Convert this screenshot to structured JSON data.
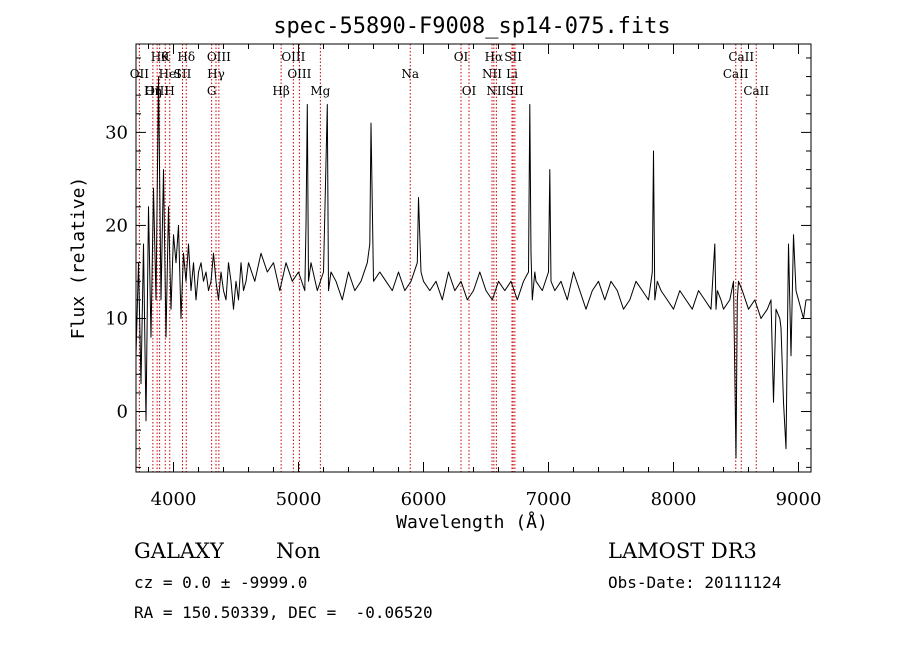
{
  "chart_data": {
    "type": "line",
    "title": "spec-55890-F9008_sp14-075.fits",
    "xlabel": "Wavelength (Å)",
    "ylabel": "Flux (relative)",
    "xlim": [
      3700,
      9100
    ],
    "ylim": [
      -6.5,
      39.5
    ],
    "xticks": [
      4000,
      5000,
      6000,
      7000,
      8000,
      9000
    ],
    "yticks": [
      0,
      10,
      20,
      30
    ],
    "grid": false,
    "series": [
      {
        "name": "flux",
        "x": [
          3700,
          3720,
          3740,
          3760,
          3780,
          3800,
          3820,
          3840,
          3860,
          3880,
          3900,
          3920,
          3940,
          3960,
          3980,
          4000,
          4020,
          4040,
          4060,
          4080,
          4100,
          4120,
          4140,
          4160,
          4180,
          4200,
          4220,
          4240,
          4260,
          4280,
          4300,
          4320,
          4340,
          4360,
          4380,
          4400,
          4420,
          4440,
          4460,
          4480,
          4500,
          4520,
          4540,
          4560,
          4580,
          4600,
          4650,
          4700,
          4750,
          4800,
          4850,
          4900,
          4950,
          5000,
          5050,
          5060,
          5070,
          5080,
          5100,
          5150,
          5200,
          5230,
          5240,
          5260,
          5300,
          5350,
          5400,
          5450,
          5500,
          5550,
          5570,
          5580,
          5600,
          5650,
          5700,
          5750,
          5800,
          5850,
          5900,
          5950,
          5960,
          5980,
          6000,
          6050,
          6100,
          6150,
          6200,
          6250,
          6300,
          6350,
          6400,
          6450,
          6500,
          6550,
          6600,
          6650,
          6700,
          6750,
          6800,
          6840,
          6850,
          6860,
          6870,
          6890,
          6900,
          6950,
          7000,
          7010,
          7020,
          7050,
          7100,
          7150,
          7200,
          7250,
          7300,
          7350,
          7400,
          7450,
          7500,
          7550,
          7600,
          7650,
          7700,
          7750,
          7800,
          7830,
          7840,
          7850,
          7870,
          7900,
          7950,
          8000,
          8050,
          8100,
          8150,
          8200,
          8250,
          8300,
          8330,
          8340,
          8350,
          8380,
          8400,
          8450,
          8480,
          8500,
          8510,
          8520,
          8550,
          8600,
          8650,
          8700,
          8750,
          8780,
          8800,
          8820,
          8850,
          8860,
          8880,
          8900,
          8920,
          8940,
          8960,
          8980,
          9000,
          9020,
          9040,
          9060
        ],
        "values": [
          6,
          16,
          3,
          18,
          -1,
          22,
          8,
          24,
          12,
          36,
          12,
          26,
          8,
          22,
          11,
          19,
          16,
          20,
          10,
          17,
          14,
          18,
          13,
          16,
          12,
          15,
          16,
          14,
          15,
          13,
          14,
          17,
          14,
          12,
          15,
          13,
          12,
          16,
          14,
          11,
          14,
          12,
          16,
          13,
          14,
          16,
          14,
          17,
          15,
          16,
          13,
          16,
          14,
          15,
          13,
          20,
          33,
          14,
          16,
          13,
          15,
          33,
          13,
          15,
          14,
          12,
          15,
          13,
          14,
          16,
          18,
          31,
          14,
          15,
          14,
          13,
          15,
          13,
          14,
          16,
          23,
          15,
          14,
          13,
          14,
          12,
          15,
          13,
          14,
          12,
          13,
          15,
          13,
          12,
          14,
          13,
          14,
          12,
          14,
          15,
          33,
          17,
          12,
          15,
          14,
          13,
          15,
          26,
          14,
          13,
          14,
          12,
          15,
          13,
          11,
          13,
          14,
          12,
          14,
          13,
          11,
          12,
          14,
          13,
          12,
          15,
          28,
          12,
          14,
          13,
          12,
          11,
          13,
          12,
          11,
          13,
          12,
          11,
          18,
          11,
          13,
          12,
          11,
          12,
          14,
          -5,
          12,
          14,
          13,
          11,
          12,
          10,
          11,
          12,
          1,
          11,
          10,
          9,
          1,
          -4,
          18,
          6,
          19,
          13,
          12,
          11,
          10,
          12
        ]
      }
    ],
    "emission_lines": [
      {
        "name": "OII",
        "x": 3727,
        "row": 1
      },
      {
        "name": "OIII",
        "x": 3869,
        "row": 2
      },
      {
        "name": "Hθ",
        "x": 3889,
        "row": 0
      },
      {
        "name": "HeI",
        "x": 3970,
        "row": 1
      },
      {
        "name": "Hη",
        "x": 3835,
        "row": 2
      },
      {
        "name": "K",
        "x": 3934,
        "row": 0
      },
      {
        "name": "H",
        "x": 3969,
        "row": 2
      },
      {
        "name": "Hδ",
        "x": 4102,
        "row": 0
      },
      {
        "name": "SII",
        "x": 4072,
        "row": 1
      },
      {
        "name": "OIII",
        "x": 4363,
        "row": 0
      },
      {
        "name": "Hγ",
        "x": 4340,
        "row": 1
      },
      {
        "name": "G",
        "x": 4305,
        "row": 2
      },
      {
        "name": "OIII",
        "x": 4959,
        "row": 0
      },
      {
        "name": "OIII",
        "x": 5007,
        "row": 1
      },
      {
        "name": "Hβ",
        "x": 4861,
        "row": 2
      },
      {
        "name": "Mg",
        "x": 5175,
        "row": 2
      },
      {
        "name": "Na",
        "x": 5894,
        "row": 1
      },
      {
        "name": "OI",
        "x": 6300,
        "row": 0
      },
      {
        "name": "OI",
        "x": 6364,
        "row": 2
      },
      {
        "name": "Hα",
        "x": 6563,
        "row": 0
      },
      {
        "name": "SII",
        "x": 6717,
        "row": 0
      },
      {
        "name": "NII",
        "x": 6548,
        "row": 1
      },
      {
        "name": "Li",
        "x": 6708,
        "row": 1
      },
      {
        "name": "NII",
        "x": 6583,
        "row": 2
      },
      {
        "name": "SII",
        "x": 6731,
        "row": 2
      },
      {
        "name": "CaII",
        "x": 8542,
        "row": 0
      },
      {
        "name": "CaII",
        "x": 8498,
        "row": 1
      },
      {
        "name": "CaII",
        "x": 8662,
        "row": 2
      }
    ],
    "line_marker_x": [
      3727,
      3835,
      3869,
      3889,
      3934,
      3970,
      4072,
      4102,
      4305,
      4340,
      4363,
      4861,
      4959,
      5007,
      5175,
      5894,
      6300,
      6364,
      6548,
      6563,
      6583,
      6708,
      6717,
      6731,
      8498,
      8542,
      8662
    ]
  },
  "info": {
    "object_class": "GALAXY",
    "subclass": "Non",
    "survey": "LAMOST DR3",
    "cz_line": "cz = 0.0 ± -9999.0",
    "obs_date_line": "Obs-Date: 20111124",
    "coords_line": "RA = 150.50339, DEC =  -0.06520"
  }
}
